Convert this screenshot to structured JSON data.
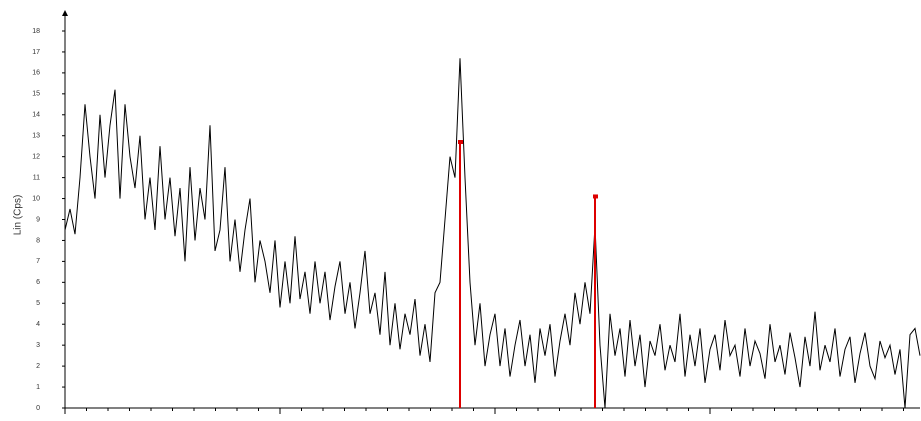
{
  "chart_data": {
    "type": "line",
    "y_label": "Lin (Cps)",
    "ylim": [
      0,
      18
    ],
    "yticks": [
      0,
      1,
      2,
      3,
      4,
      5,
      6,
      7,
      8,
      9,
      10,
      11,
      12,
      13,
      14,
      15,
      16,
      17,
      18
    ],
    "series": [
      {
        "color": "#000000",
        "values": [
          8.5,
          9.5,
          8.3,
          11,
          14.5,
          12,
          10,
          14,
          11,
          13.5,
          15.2,
          10,
          14.5,
          12,
          10.5,
          13,
          9,
          11,
          8.5,
          12.5,
          9,
          11,
          8.2,
          10.5,
          7,
          11.5,
          8,
          10.5,
          9,
          13.5,
          7.5,
          8.5,
          11.5,
          7,
          9,
          6.5,
          8.5,
          10,
          6,
          8,
          7,
          5.5,
          8,
          4.8,
          7,
          5,
          8.2,
          5.2,
          6.5,
          4.5,
          7,
          5,
          6.5,
          4.2,
          5.8,
          7,
          4.5,
          6,
          3.8,
          5.5,
          7.5,
          4.5,
          5.5,
          3.5,
          6.5,
          3,
          5,
          2.8,
          4.5,
          3.5,
          5.2,
          2.5,
          4,
          2.2,
          5.5,
          6,
          9,
          12,
          11,
          16.7,
          11,
          6,
          3,
          5,
          2,
          3.5,
          4.5,
          2,
          3.8,
          1.5,
          3,
          4.2,
          2,
          3.5,
          1.2,
          3.8,
          2.5,
          4,
          1.5,
          3.2,
          4.5,
          3,
          5.5,
          4,
          6,
          4.5,
          8.7,
          3,
          0,
          4.5,
          2.5,
          3.8,
          1.5,
          4.2,
          2,
          3.5,
          1,
          3.2,
          2.5,
          4,
          1.8,
          3,
          2.2,
          4.5,
          1.5,
          3.5,
          2,
          3.8,
          1.2,
          2.8,
          3.5,
          1.8,
          4.2,
          2.5,
          3,
          1.5,
          3.8,
          2,
          3.2,
          2.6,
          1.4,
          4,
          2.2,
          3,
          1.6,
          3.6,
          2.4,
          1,
          3.4,
          2,
          4.6,
          1.8,
          3,
          2.2,
          3.8,
          1.5,
          2.8,
          3.4,
          1.2,
          2.6,
          3.6,
          2,
          1.4,
          3.2,
          2.4,
          3,
          1.6,
          2.8,
          0,
          3.5,
          3.8,
          2.5
        ]
      }
    ],
    "reference_peaks": {
      "color": "#dd0000",
      "peaks": [
        {
          "index": 79,
          "value": 12.7
        },
        {
          "index": 106,
          "value": 10.1
        }
      ]
    }
  }
}
